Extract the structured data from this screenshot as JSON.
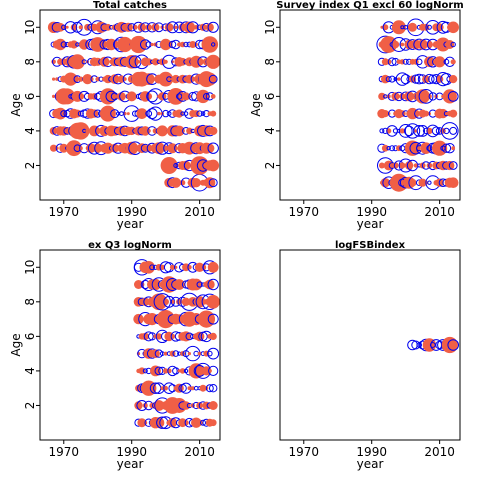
{
  "figure": {
    "colors": {
      "positive": "#f05f46",
      "negative": "#0000ee",
      "frame": "#000000"
    },
    "legend": "none",
    "grid": false
  },
  "chart_data": [
    {
      "type": "bubble",
      "title": "Total catches",
      "xlabel": "year",
      "ylabel": "Age",
      "xlim": [
        1963,
        2016
      ],
      "ylim": [
        0,
        11
      ],
      "xticks": [
        "1970",
        "1990",
        "2010"
      ],
      "yticks": [
        "2",
        "4",
        "6",
        "8",
        "10"
      ],
      "rows": [
        {
          "age": 1,
          "x_from": 2001,
          "x_to": 2014,
          "pattern": "abaa",
          "size": 0.7
        },
        {
          "age": 2,
          "x_from": 2001,
          "x_to": 2014,
          "pattern": "aabb",
          "size": 0.75
        },
        {
          "age": 3,
          "x_from": 1967,
          "x_to": 2014,
          "pattern": "aabab",
          "size": 0.75
        },
        {
          "age": 4,
          "x_from": 1967,
          "x_to": 2014,
          "pattern": "abaab",
          "size": 0.65
        },
        {
          "age": 5,
          "x_from": 1967,
          "x_to": 2014,
          "pattern": "baabb",
          "size": 0.55
        },
        {
          "age": 6,
          "x_from": 1967,
          "x_to": 2014,
          "pattern": "abba",
          "size": 0.6
        },
        {
          "age": 7,
          "x_from": 1967,
          "x_to": 2014,
          "pattern": "aabab",
          "size": 0.6
        },
        {
          "age": 8,
          "x_from": 1967,
          "x_to": 2014,
          "pattern": "abaab",
          "size": 0.6
        },
        {
          "age": 9,
          "x_from": 1967,
          "x_to": 2014,
          "pattern": "baab",
          "size": 0.65
        },
        {
          "age": 10,
          "x_from": 1967,
          "x_to": 2014,
          "pattern": "abab",
          "size": 0.65
        }
      ]
    },
    {
      "type": "bubble",
      "title": "Survey index Q1 excl 60 logNorm",
      "xlabel": "year",
      "ylabel": "Age",
      "xlim": [
        1963,
        2016
      ],
      "ylim": [
        0,
        11
      ],
      "xticks": [
        "1970",
        "1990",
        "2010"
      ],
      "yticks": [
        "2",
        "4",
        "6",
        "8",
        "10"
      ],
      "rows": [
        {
          "age": 1,
          "x_from": 1993,
          "x_to": 2014,
          "pattern": "aabb",
          "size": 0.7
        },
        {
          "age": 2,
          "x_from": 1993,
          "x_to": 2014,
          "pattern": "abab",
          "size": 0.6
        },
        {
          "age": 3,
          "x_from": 1993,
          "x_to": 2014,
          "pattern": "babb",
          "size": 0.7
        },
        {
          "age": 4,
          "x_from": 1993,
          "x_to": 2014,
          "pattern": "bbab",
          "size": 0.6
        },
        {
          "age": 5,
          "x_from": 1993,
          "x_to": 2014,
          "pattern": "aaab",
          "size": 0.55
        },
        {
          "age": 6,
          "x_from": 1993,
          "x_to": 2014,
          "pattern": "abab",
          "size": 0.55
        },
        {
          "age": 7,
          "x_from": 1993,
          "x_to": 2014,
          "pattern": "babb",
          "size": 0.5
        },
        {
          "age": 8,
          "x_from": 1993,
          "x_to": 2014,
          "pattern": "baab",
          "size": 0.6
        },
        {
          "age": 9,
          "x_from": 1993,
          "x_to": 2014,
          "pattern": "abab",
          "size": 0.65
        },
        {
          "age": 10,
          "x_from": 1993,
          "x_to": 2014,
          "pattern": "aabb",
          "size": 0.7
        }
      ]
    },
    {
      "type": "bubble",
      "title": "ex Q3 logNorm",
      "xlabel": "year",
      "ylabel": "Age",
      "xlim": [
        1963,
        2016
      ],
      "ylim": [
        0,
        11
      ],
      "xticks": [
        "1970",
        "1990",
        "2010"
      ],
      "yticks": [
        "2",
        "4",
        "6",
        "8",
        "10"
      ],
      "rows": [
        {
          "age": 1,
          "x_from": 1992,
          "x_to": 2014,
          "pattern": "baab",
          "size": 0.7
        },
        {
          "age": 2,
          "x_from": 1992,
          "x_to": 2014,
          "pattern": "abab",
          "size": 0.6
        },
        {
          "age": 3,
          "x_from": 1992,
          "x_to": 2014,
          "pattern": "abba",
          "size": 0.6
        },
        {
          "age": 4,
          "x_from": 1992,
          "x_to": 2014,
          "pattern": "aabb",
          "size": 0.6
        },
        {
          "age": 5,
          "x_from": 1992,
          "x_to": 2014,
          "pattern": "abbab",
          "size": 0.5
        },
        {
          "age": 6,
          "x_from": 1992,
          "x_to": 2014,
          "pattern": "baab",
          "size": 0.6
        },
        {
          "age": 7,
          "x_from": 1992,
          "x_to": 2014,
          "pattern": "aaba",
          "size": 0.75
        },
        {
          "age": 8,
          "x_from": 1992,
          "x_to": 2014,
          "pattern": "abab",
          "size": 0.65
        },
        {
          "age": 9,
          "x_from": 1992,
          "x_to": 2014,
          "pattern": "aabb",
          "size": 0.7
        },
        {
          "age": 10,
          "x_from": 1992,
          "x_to": 2014,
          "pattern": "bbaa",
          "size": 0.75
        }
      ]
    },
    {
      "type": "bubble",
      "title": "logFSBindex",
      "xlabel": "year",
      "ylabel": "",
      "xlim": [
        1963,
        2016
      ],
      "ylim": [
        0,
        11
      ],
      "xticks": [
        "1970",
        "1990",
        "2010"
      ],
      "yticks": [],
      "rows": [
        {
          "age": 5.5,
          "x_from": 2002,
          "x_to": 2014,
          "pattern": "bbbbba",
          "size": 0.6
        }
      ]
    }
  ]
}
